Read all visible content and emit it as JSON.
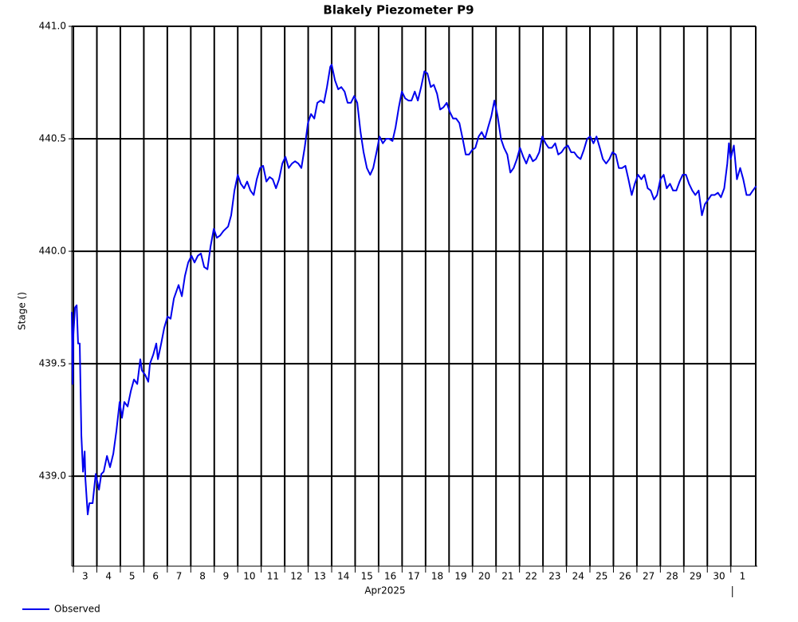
{
  "chart_data": {
    "type": "line",
    "title": "Blakely Piezometer P9",
    "ylabel": "Stage ()",
    "xlabel": "Apr2025",
    "x": [
      2.93,
      2.97,
      3.0,
      3.07,
      3.14,
      3.2,
      3.27,
      3.34,
      3.41,
      3.48,
      3.51,
      3.61,
      3.68,
      3.82,
      3.95,
      4.09,
      4.19,
      4.29,
      4.43,
      4.56,
      4.7,
      4.83,
      4.97,
      5.07,
      5.17,
      5.31,
      5.45,
      5.58,
      5.72,
      5.85,
      5.92,
      6.06,
      6.19,
      6.26,
      6.4,
      6.53,
      6.6,
      6.74,
      6.87,
      7.01,
      7.14,
      7.28,
      7.48,
      7.62,
      7.75,
      7.89,
      8.03,
      8.16,
      8.3,
      8.43,
      8.57,
      8.71,
      8.84,
      8.98,
      9.11,
      9.25,
      9.39,
      9.59,
      9.72,
      9.86,
      10.0,
      10.13,
      10.27,
      10.4,
      10.54,
      10.68,
      10.81,
      10.95,
      11.08,
      11.22,
      11.36,
      11.49,
      11.63,
      11.76,
      11.9,
      12.03,
      12.17,
      12.31,
      12.44,
      12.58,
      12.71,
      12.85,
      12.99,
      13.12,
      13.26,
      13.39,
      13.53,
      13.67,
      13.8,
      13.94,
      14.0,
      14.14,
      14.28,
      14.41,
      14.55,
      14.68,
      14.82,
      14.96,
      15.09,
      15.23,
      15.36,
      15.5,
      15.64,
      15.77,
      15.91,
      16.04,
      16.18,
      16.32,
      16.45,
      16.59,
      16.72,
      16.86,
      16.99,
      17.13,
      17.27,
      17.4,
      17.54,
      17.67,
      17.81,
      17.95,
      18.08,
      18.22,
      18.35,
      18.49,
      18.62,
      18.76,
      18.9,
      19.03,
      19.17,
      19.3,
      19.44,
      19.58,
      19.71,
      19.85,
      19.98,
      20.12,
      20.26,
      20.39,
      20.53,
      20.66,
      20.8,
      20.93,
      21.07,
      21.21,
      21.34,
      21.48,
      21.61,
      21.75,
      21.89,
      22.02,
      22.16,
      22.29,
      22.43,
      22.57,
      22.7,
      22.84,
      22.97,
      23.11,
      23.24,
      23.38,
      23.52,
      23.65,
      23.79,
      23.92,
      24.06,
      24.2,
      24.33,
      24.47,
      24.6,
      24.74,
      24.88,
      25.01,
      25.15,
      25.28,
      25.42,
      25.55,
      25.69,
      25.83,
      25.96,
      26.1,
      26.23,
      26.37,
      26.51,
      26.64,
      26.78,
      26.91,
      27.05,
      27.19,
      27.32,
      27.46,
      27.59,
      27.73,
      27.86,
      28.0,
      28.14,
      28.27,
      28.41,
      28.54,
      28.68,
      28.82,
      28.95,
      29.09,
      29.22,
      29.36,
      29.49,
      29.63,
      29.77,
      29.9,
      30.04,
      30.17,
      30.31,
      30.45,
      30.58,
      30.72,
      30.85,
      30.92,
      30.99,
      31.13,
      31.26,
      31.4,
      31.53,
      31.67,
      31.81,
      31.94,
      32.08
    ],
    "series": [
      {
        "name": "Observed",
        "color": "#0000ee",
        "values": [
          439.73,
          439.41,
          439.63,
          439.75,
          439.76,
          439.59,
          439.59,
          439.18,
          439.02,
          439.11,
          438.99,
          438.83,
          438.88,
          438.88,
          439.01,
          438.94,
          439.01,
          439.02,
          439.09,
          439.04,
          439.1,
          439.2,
          439.33,
          439.26,
          439.33,
          439.31,
          439.38,
          439.43,
          439.41,
          439.52,
          439.47,
          439.45,
          439.42,
          439.5,
          439.54,
          439.59,
          439.52,
          439.59,
          439.66,
          439.71,
          439.7,
          439.79,
          439.85,
          439.8,
          439.89,
          439.95,
          439.98,
          439.95,
          439.98,
          439.99,
          439.93,
          439.92,
          440.02,
          440.1,
          440.06,
          440.07,
          440.09,
          440.11,
          440.16,
          440.27,
          440.34,
          440.3,
          440.28,
          440.31,
          440.27,
          440.25,
          440.32,
          440.37,
          440.38,
          440.31,
          440.33,
          440.32,
          440.28,
          440.32,
          440.39,
          440.42,
          440.37,
          440.39,
          440.4,
          440.39,
          440.37,
          440.46,
          440.57,
          440.61,
          440.59,
          440.66,
          440.67,
          440.66,
          440.73,
          440.82,
          440.83,
          440.76,
          440.72,
          440.73,
          440.71,
          440.66,
          440.66,
          440.69,
          440.66,
          440.53,
          440.44,
          440.37,
          440.34,
          440.37,
          440.44,
          440.51,
          440.48,
          440.5,
          440.5,
          440.49,
          440.55,
          440.64,
          440.71,
          440.68,
          440.67,
          440.67,
          440.71,
          440.67,
          440.73,
          440.8,
          440.79,
          440.73,
          440.74,
          440.7,
          440.63,
          440.64,
          440.66,
          440.62,
          440.59,
          440.59,
          440.57,
          440.5,
          440.43,
          440.43,
          440.45,
          440.46,
          440.51,
          440.53,
          440.5,
          440.55,
          440.6,
          440.67,
          440.6,
          440.5,
          440.46,
          440.43,
          440.35,
          440.37,
          440.41,
          440.46,
          440.42,
          440.39,
          440.43,
          440.4,
          440.41,
          440.44,
          440.51,
          440.48,
          440.46,
          440.46,
          440.48,
          440.43,
          440.44,
          440.46,
          440.47,
          440.44,
          440.44,
          440.42,
          440.41,
          440.45,
          440.5,
          440.51,
          440.48,
          440.51,
          440.46,
          440.41,
          440.39,
          440.41,
          440.44,
          440.43,
          440.37,
          440.37,
          440.38,
          440.32,
          440.25,
          440.3,
          440.34,
          440.32,
          440.34,
          440.28,
          440.27,
          440.23,
          440.25,
          440.32,
          440.34,
          440.28,
          440.3,
          440.27,
          440.27,
          440.31,
          440.34,
          440.34,
          440.3,
          440.27,
          440.25,
          440.27,
          440.16,
          440.21,
          440.23,
          440.25,
          440.25,
          440.26,
          440.24,
          440.28,
          440.39,
          440.48,
          440.41,
          440.47,
          440.32,
          440.37,
          440.32,
          440.25,
          440.25,
          440.27,
          440.29
        ]
      }
    ],
    "xlim": [
      2.93,
      32.13
    ],
    "ylim": [
      438.6,
      441.0
    ],
    "xticks": [
      3,
      4,
      5,
      6,
      7,
      8,
      9,
      10,
      11,
      12,
      13,
      14,
      15,
      16,
      17,
      18,
      19,
      20,
      21,
      22,
      23,
      24,
      25,
      26,
      27,
      28,
      29,
      30,
      {
        "value": 31,
        "label": "1"
      }
    ],
    "yticks": [
      {
        "value": 439,
        "label": "439.0"
      },
      {
        "value": 439.5,
        "label": "439.5"
      },
      {
        "value": 440,
        "label": "440.0"
      },
      {
        "value": 440.5,
        "label": "440.5"
      },
      {
        "value": 441,
        "label": "441.0"
      }
    ],
    "grid": true,
    "legend": "bottom-left"
  }
}
